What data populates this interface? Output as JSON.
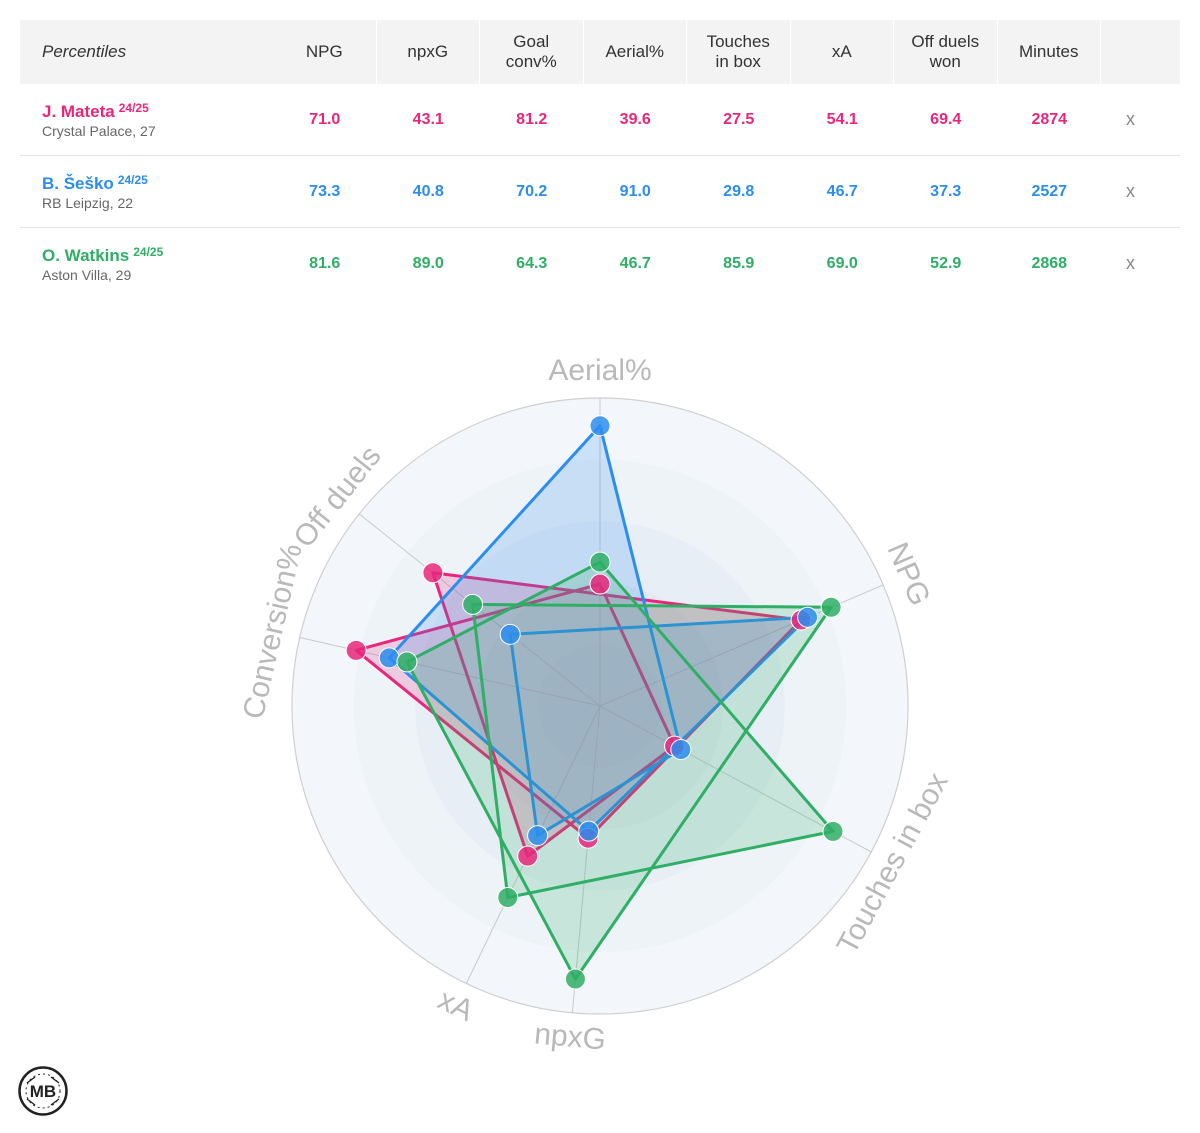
{
  "table": {
    "header": {
      "title": "Percentiles",
      "columns": [
        [
          "NPG"
        ],
        [
          "npxG"
        ],
        [
          "Goal",
          "conv%"
        ],
        [
          "Aerial%"
        ],
        [
          "Touches",
          "in box"
        ],
        [
          "xA"
        ],
        [
          "Off duels",
          "won"
        ],
        [
          "Minutes"
        ]
      ]
    },
    "rows": [
      {
        "name": "J. Mateta",
        "season": "24/25",
        "club": "Crystal Palace, 27",
        "color": "#e8277b",
        "values": [
          "71.0",
          "43.1",
          "81.2",
          "39.6",
          "27.5",
          "54.1",
          "69.4",
          "2874"
        ],
        "remove": "x"
      },
      {
        "name": "B. Šeško",
        "season": "24/25",
        "club": "RB Leipzig, 22",
        "color": "#2b8ded",
        "values": [
          "73.3",
          "40.8",
          "70.2",
          "91.0",
          "29.8",
          "46.7",
          "37.3",
          "2527"
        ],
        "remove": "x"
      },
      {
        "name": "O. Watkins",
        "season": "24/25",
        "club": "Aston Villa, 29",
        "color": "#2fae66",
        "values": [
          "81.6",
          "89.0",
          "64.3",
          "46.7",
          "85.9",
          "69.0",
          "52.9",
          "2868"
        ],
        "remove": "x"
      }
    ]
  },
  "chart_data": {
    "type": "radar",
    "axes": [
      "NPG",
      "npxG",
      "Conversion%",
      "Aerial%",
      "Touches in box",
      "xA",
      "Off duels"
    ],
    "range": [
      0,
      100
    ],
    "series": [
      {
        "name": "J. Mateta",
        "color": "#e8277b",
        "values": [
          71.0,
          43.1,
          81.2,
          39.6,
          27.5,
          54.1,
          69.4
        ]
      },
      {
        "name": "B. Šeško",
        "color": "#2b8ded",
        "values": [
          73.3,
          40.8,
          70.2,
          91.0,
          29.8,
          46.7,
          37.3
        ]
      },
      {
        "name": "O. Watkins",
        "color": "#2fae66",
        "values": [
          81.6,
          89.0,
          64.3,
          46.7,
          85.9,
          69.0,
          52.9
        ]
      }
    ]
  },
  "logo": {
    "text": "MB",
    "icon": "mb-logo-icon"
  }
}
